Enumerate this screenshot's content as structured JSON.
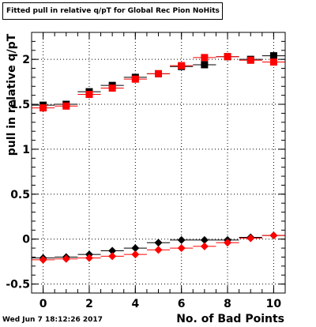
{
  "chart_data": {
    "type": "scatter",
    "title": "Fitted pull in relative q/pT for Global Rec Pion NoHits",
    "xlabel": "No. of Bad Points",
    "ylabel": "pull in relative q/pT",
    "timestamp": "Wed Jun  7 18:12:26 2017",
    "xlim": [
      -0.5,
      10.5
    ],
    "ylim": [
      -0.6,
      2.3
    ],
    "x_ticks": [
      "0",
      "2",
      "4",
      "6",
      "8",
      "10"
    ],
    "y_ticks": [
      "-0.5",
      "0",
      "0.5",
      "1",
      "1.5",
      "2"
    ],
    "grid": true,
    "series": [
      {
        "marker": "square",
        "color": "#000000",
        "x": [
          0,
          1,
          2,
          3,
          4,
          5,
          6,
          7,
          8,
          9,
          10
        ],
        "y": [
          1.49,
          1.5,
          1.64,
          1.71,
          1.8,
          1.84,
          1.92,
          1.94,
          2.03,
          2.0,
          2.04
        ]
      },
      {
        "marker": "square",
        "color": "#ff0000",
        "x": [
          0,
          1,
          2,
          3,
          4,
          5,
          6,
          7,
          8,
          9,
          10
        ],
        "y": [
          1.46,
          1.48,
          1.61,
          1.68,
          1.78,
          1.84,
          1.93,
          2.02,
          2.03,
          1.99,
          1.97
        ]
      },
      {
        "marker": "diamond",
        "color": "#000000",
        "x": [
          0,
          1,
          2,
          3,
          4,
          5,
          6,
          7,
          8,
          9,
          10
        ],
        "y": [
          -0.21,
          -0.2,
          -0.17,
          -0.13,
          -0.1,
          -0.04,
          -0.01,
          -0.01,
          -0.01,
          0.02,
          0.04
        ]
      },
      {
        "marker": "diamond",
        "color": "#ff0000",
        "x": [
          0,
          1,
          2,
          3,
          4,
          5,
          6,
          7,
          8,
          9,
          10
        ],
        "y": [
          -0.23,
          -0.22,
          -0.21,
          -0.19,
          -0.17,
          -0.12,
          -0.1,
          -0.08,
          -0.04,
          0.01,
          0.04
        ]
      }
    ]
  }
}
